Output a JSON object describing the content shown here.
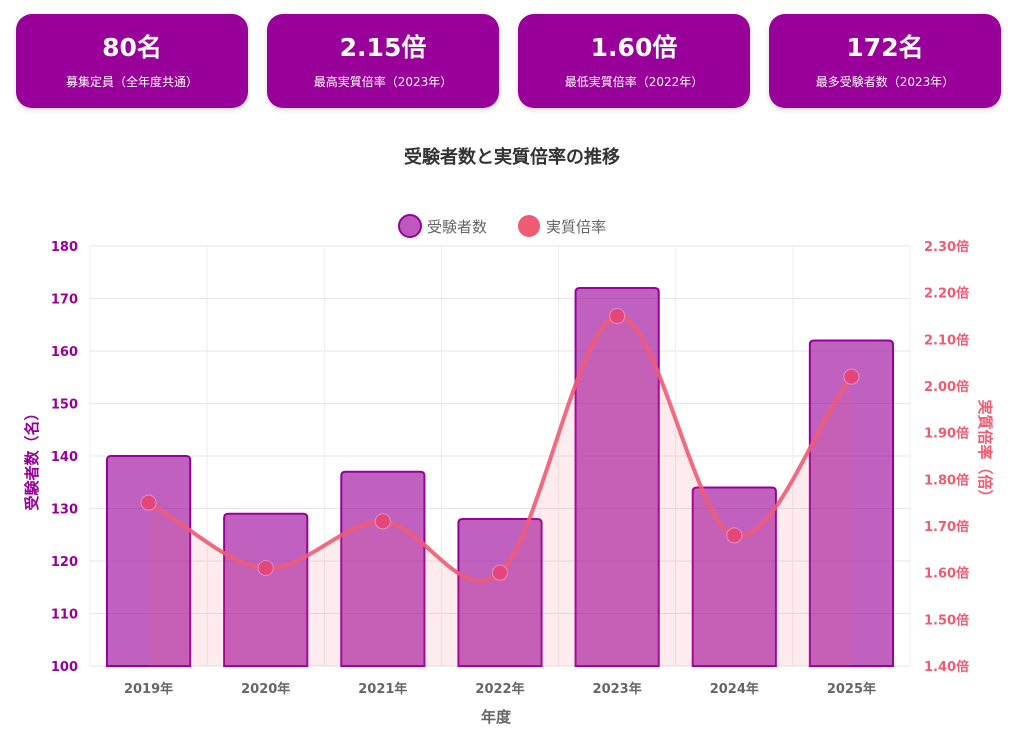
{
  "stats": [
    {
      "value": "80名",
      "label": "募集定員（全年度共通）"
    },
    {
      "value": "2.15倍",
      "label": "最高実質倍率（2023年）"
    },
    {
      "value": "1.60倍",
      "label": "最低実質倍率（2022年）"
    },
    {
      "value": "172名",
      "label": "最多受験者数（2023年）"
    }
  ],
  "chart_data": {
    "type": "bar",
    "title": "受験者数と実質倍率の推移",
    "categories": [
      "2019年",
      "2020年",
      "2021年",
      "2022年",
      "2023年",
      "2024年",
      "2025年"
    ],
    "series": [
      {
        "name": "受験者数",
        "type": "bar",
        "axis": "left",
        "values": [
          140,
          129,
          137,
          128,
          172,
          134,
          162
        ],
        "color": "#990099"
      },
      {
        "name": "実質倍率",
        "type": "line",
        "axis": "right",
        "smooth": true,
        "values": [
          1.75,
          1.61,
          1.71,
          1.6,
          2.15,
          1.68,
          2.02
        ],
        "color": "#F05B73"
      }
    ],
    "xlabel": "年度",
    "ylabel": "受験者数（名）",
    "y2label": "実質倍率（倍）",
    "ylim": [
      100,
      180
    ],
    "y2lim": [
      1.4,
      2.3
    ],
    "yticks": [
      "100",
      "110",
      "120",
      "130",
      "140",
      "150",
      "160",
      "170",
      "180"
    ],
    "y2ticks": [
      "1.40倍",
      "1.50倍",
      "1.60倍",
      "1.70倍",
      "1.80倍",
      "1.90倍",
      "2.00倍",
      "2.10倍",
      "2.20倍",
      "2.30倍"
    ],
    "grid": true,
    "legend_position": "top-center"
  }
}
